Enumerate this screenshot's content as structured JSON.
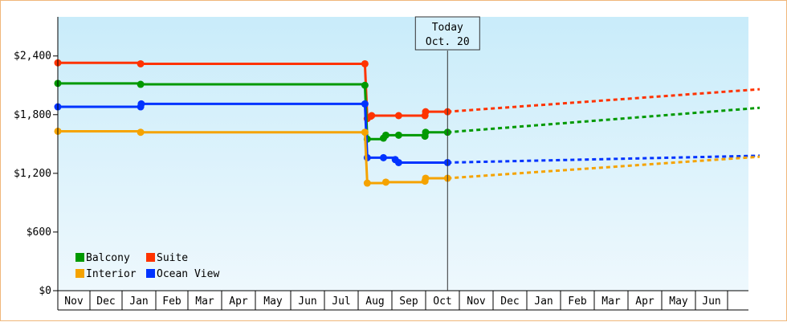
{
  "chart_data": {
    "type": "line",
    "title": "",
    "xlabel": "",
    "ylabel": "",
    "ylim": [
      0,
      2800
    ],
    "y_ticks": [
      "$0",
      "$600",
      "$1,200",
      "$1,800",
      "$2,400"
    ],
    "y_tick_values": [
      0,
      600,
      1200,
      1800,
      2400
    ],
    "x_months": [
      "Nov",
      "Dec",
      "Jan",
      "Feb",
      "Mar",
      "Apr",
      "May",
      "Jun",
      "Jul",
      "Aug",
      "Sep",
      "Oct",
      "Nov",
      "Dec",
      "Jan",
      "Feb",
      "Mar",
      "Apr",
      "May",
      "Jun"
    ],
    "today_marker": {
      "line1": "Today",
      "line2": "Oct. 20",
      "month_index": 11.65
    },
    "grid": false,
    "legend_position": "bottom-left",
    "series": [
      {
        "name": "Suite",
        "color": "#ff3300",
        "line_style": "step",
        "points": [
          {
            "m": 0.0,
            "v": 2330
          },
          {
            "m": 2.55,
            "v": 2320
          },
          {
            "m": 9.2,
            "v": 2320
          },
          {
            "m": 9.27,
            "v": 1760
          },
          {
            "m": 9.4,
            "v": 1790
          },
          {
            "m": 10.2,
            "v": 1790
          },
          {
            "m": 10.98,
            "v": 1790
          },
          {
            "m": 11.0,
            "v": 1830
          },
          {
            "m": 11.65,
            "v": 1830
          }
        ],
        "forecast_end": {
          "m": 21.0,
          "v": 2060
        }
      },
      {
        "name": "Balcony",
        "color": "#009900",
        "line_style": "step",
        "points": [
          {
            "m": 0.0,
            "v": 2120
          },
          {
            "m": 2.55,
            "v": 2110
          },
          {
            "m": 9.2,
            "v": 2100
          },
          {
            "m": 9.27,
            "v": 1550
          },
          {
            "m": 9.75,
            "v": 1560
          },
          {
            "m": 9.82,
            "v": 1590
          },
          {
            "m": 10.2,
            "v": 1590
          },
          {
            "m": 10.98,
            "v": 1580
          },
          {
            "m": 11.0,
            "v": 1620
          },
          {
            "m": 11.65,
            "v": 1620
          }
        ],
        "forecast_end": {
          "m": 21.0,
          "v": 1870
        }
      },
      {
        "name": "Ocean View",
        "color": "#0033ff",
        "line_style": "step",
        "points": [
          {
            "m": 0.0,
            "v": 1880
          },
          {
            "m": 2.55,
            "v": 1880
          },
          {
            "m": 2.57,
            "v": 1910
          },
          {
            "m": 9.2,
            "v": 1910
          },
          {
            "m": 9.27,
            "v": 1360
          },
          {
            "m": 9.75,
            "v": 1360
          },
          {
            "m": 10.1,
            "v": 1340
          },
          {
            "m": 10.2,
            "v": 1310
          },
          {
            "m": 11.65,
            "v": 1310
          }
        ],
        "forecast_end": {
          "m": 21.0,
          "v": 1380
        }
      },
      {
        "name": "Interior",
        "color": "#f5a300",
        "line_style": "step",
        "points": [
          {
            "m": 0.0,
            "v": 1630
          },
          {
            "m": 2.55,
            "v": 1620
          },
          {
            "m": 9.2,
            "v": 1620
          },
          {
            "m": 9.27,
            "v": 1100
          },
          {
            "m": 9.82,
            "v": 1110
          },
          {
            "m": 10.98,
            "v": 1120
          },
          {
            "m": 11.0,
            "v": 1150
          },
          {
            "m": 11.65,
            "v": 1150
          }
        ],
        "forecast_end": {
          "m": 21.0,
          "v": 1370
        }
      }
    ],
    "legend": [
      {
        "name": "Balcony",
        "color": "#009900"
      },
      {
        "name": "Suite",
        "color": "#ff3300"
      },
      {
        "name": "Interior",
        "color": "#f5a300"
      },
      {
        "name": "Ocean View",
        "color": "#0033ff"
      }
    ]
  }
}
